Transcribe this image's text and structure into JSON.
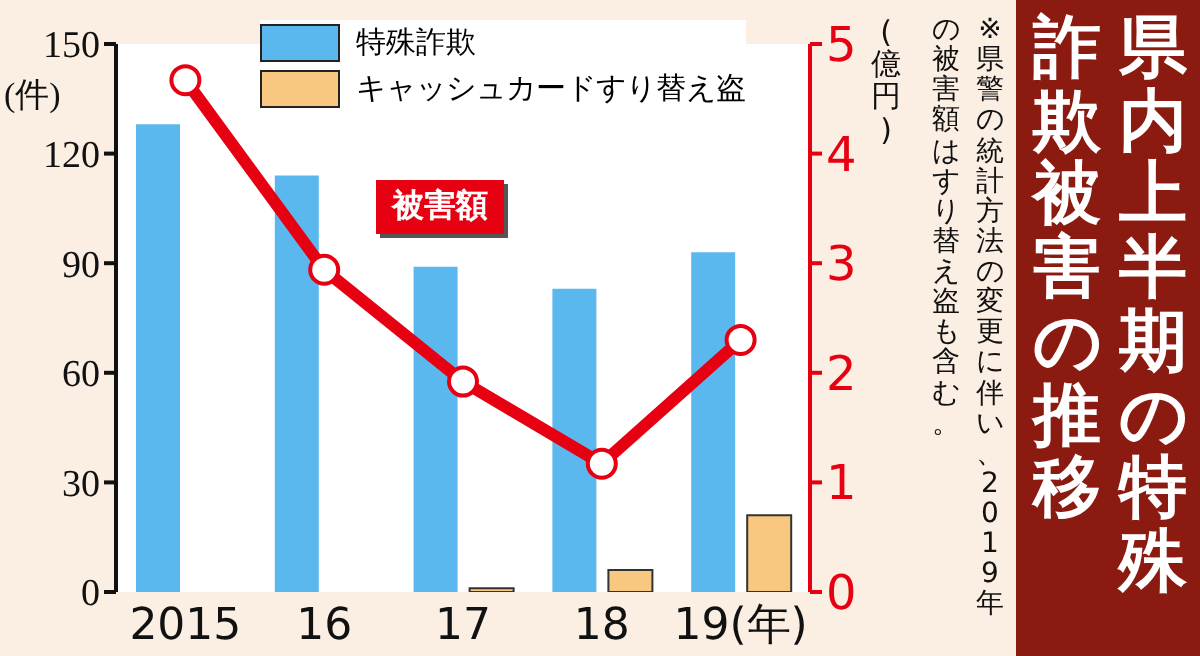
{
  "chart_data": {
    "type": "bar",
    "title": "県内上半期の特殊詐欺被害の推移",
    "ylabel": "(件)",
    "y2label": "(億円)",
    "annotations": [
      "※県警の統計方法の変更に伴い、2019年の被害額はすり替え盗も含む。"
    ],
    "categories": [
      "2015",
      "16",
      "17",
      "18",
      "19(年)"
    ],
    "series": [
      {
        "name": "特殊詐欺",
        "color": "#5bb8ee",
        "values": [
          128,
          114,
          89,
          83,
          93
        ]
      },
      {
        "name": "キャッシュカードすり替え盗",
        "color": "#f9c880",
        "values": [
          null,
          null,
          1,
          6,
          21
        ]
      },
      {
        "name": "被害額",
        "type": "line",
        "axis": "y2",
        "color": "#e60012",
        "values": [
          4.67,
          2.94,
          1.92,
          1.17,
          2.3
        ]
      }
    ],
    "ylim": [
      0,
      150
    ],
    "yticks": [
      0,
      30,
      60,
      90,
      120,
      150
    ],
    "y2lim": [
      0,
      5
    ],
    "y2ticks": [
      0,
      1,
      2,
      3,
      4,
      5
    ],
    "legend": "top",
    "marker": "circle",
    "grid": false
  }
}
